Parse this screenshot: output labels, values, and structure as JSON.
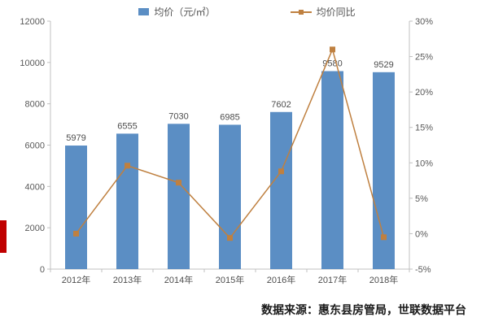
{
  "legend": {
    "bar_label": "均价（元/㎡）",
    "line_label": "均价同比"
  },
  "source_note": "数据来源：惠东县房管局，世联数据平台",
  "colors": {
    "bar": "#5b8ec4",
    "line": "#bf8040",
    "axis": "#c0c0c0",
    "text": "#595959",
    "accent_red": "#c00000"
  },
  "chart_data": {
    "type": "bar",
    "title": "",
    "categories": [
      "2012年",
      "2013年",
      "2014年",
      "2015年",
      "2016年",
      "2017年",
      "2018年"
    ],
    "series": [
      {
        "name": "均价（元/㎡）",
        "type": "bar",
        "axis": "left",
        "values": [
          5979,
          6555,
          7030,
          6985,
          7602,
          9580,
          9529
        ]
      },
      {
        "name": "均价同比",
        "type": "line",
        "axis": "right",
        "values": [
          0.0,
          9.6,
          7.2,
          -0.6,
          8.8,
          26.0,
          -0.5
        ]
      }
    ],
    "bar_labels": [
      "5979",
      "6555",
      "7030",
      "6985",
      "7602",
      "9580",
      "9529"
    ],
    "left_axis": {
      "min": 0,
      "max": 12000,
      "step": 2000,
      "ticks": [
        "0",
        "2000",
        "4000",
        "6000",
        "8000",
        "10000",
        "12000"
      ]
    },
    "right_axis": {
      "min": -5,
      "max": 30,
      "step": 5,
      "ticks": [
        "-5%",
        "0%",
        "5%",
        "10%",
        "15%",
        "20%",
        "25%",
        "30%"
      ]
    },
    "grid": false,
    "legend_position": "top"
  }
}
